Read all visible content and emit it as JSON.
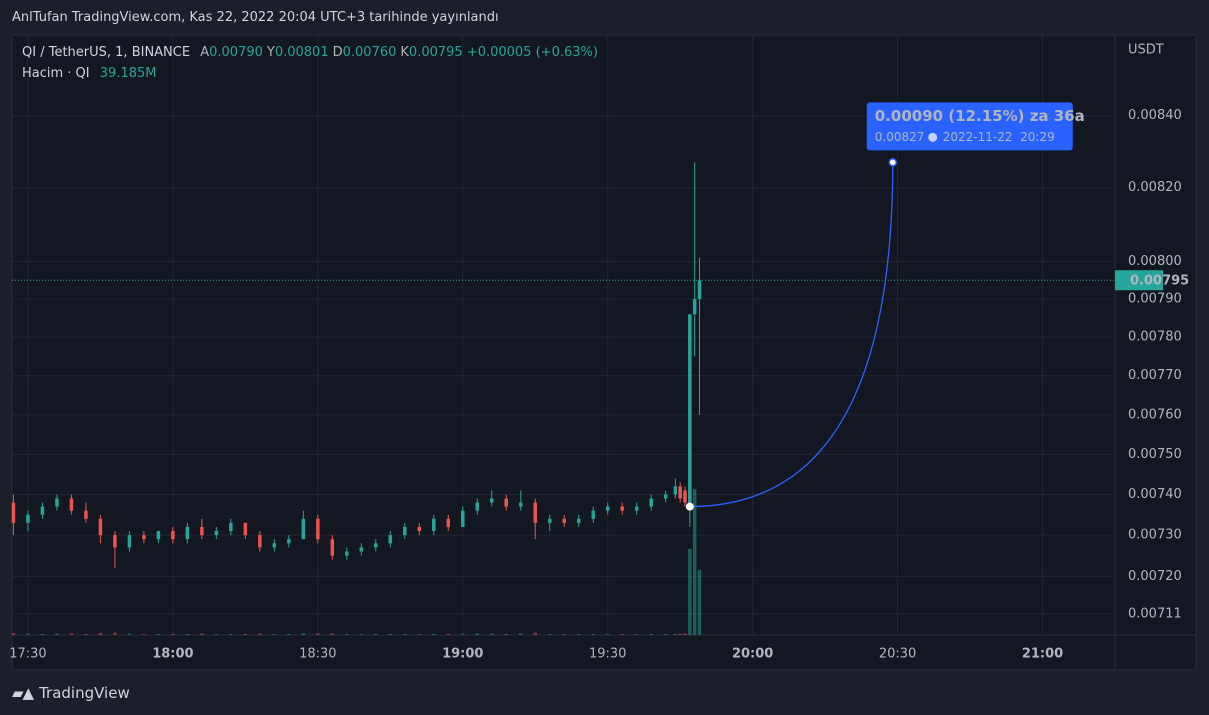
{
  "header": "AnlTufan TradingView.com, Kas 22, 2022 20:04 UTC+3 tarihinde yayınlandı",
  "footer": "TradingView",
  "chart_data": {
    "type": "candlestick",
    "symbol": "QI / TetherUS, 1, BINANCE",
    "ohlc_legend": [
      {
        "key": "A",
        "value": {
          "value": 0.0079,
          "label": "0.00790"
        }
      },
      {
        "key": "Y",
        "value": {
          "value": 0.00801,
          "label": "0.00801"
        }
      },
      {
        "key": "D",
        "value": {
          "value": 0.0076,
          "label": "0.00760"
        }
      },
      {
        "key": "K",
        "value": {
          "value": 0.00795,
          "label": "0.00795"
        }
      }
    ],
    "change": "+0.00005 (+0.63%)",
    "volume_title": "Hacim · QI",
    "volume_value": {
      "value": 39.185,
      "label": "39.185M"
    },
    "y_axis_label": "USDT",
    "log_scale": true,
    "grid": true,
    "up_color": "#26a69a",
    "down_color": "#ef5350",
    "ylim": [
      0.00706,
      0.00863
    ],
    "yticks": [
      {
        "value": 0.0084,
        "label": "0.00840"
      },
      {
        "value": 0.0082,
        "label": "0.00820"
      },
      {
        "value": 0.008,
        "label": "0.00800"
      },
      {
        "value": 0.0079,
        "label": "0.00790"
      },
      {
        "value": 0.0078,
        "label": "0.00780"
      },
      {
        "value": 0.0077,
        "label": "0.00770"
      },
      {
        "value": 0.0076,
        "label": "0.00760"
      },
      {
        "value": 0.0075,
        "label": "0.00750"
      },
      {
        "value": 0.0074,
        "label": "0.00740"
      },
      {
        "value": 0.0073,
        "label": "0.00730"
      },
      {
        "value": 0.0072,
        "label": "0.00720"
      },
      0.00711
    ],
    "xlim": [
      1046.7,
      1275
    ],
    "xticks": [
      {
        "value": 1050,
        "label": "17:30"
      },
      {
        "value": 1080,
        "label": "18:00"
      },
      {
        "value": 1110,
        "label": "18:30"
      },
      {
        "value": 1140,
        "label": "19:00"
      },
      {
        "value": 1170,
        "label": "19:30"
      },
      {
        "value": 1200,
        "label": "20:00"
      },
      {
        "value": 1230,
        "label": "20:30"
      },
      {
        "value": 1260,
        "label": "21:00"
      }
    ],
    "volume_lim": [
      0,
      362
    ],
    "x": [
      1047,
      1050,
      1053,
      1056,
      1059,
      1062,
      1065,
      1068,
      1071,
      1074,
      1077,
      1080,
      1083,
      1086,
      1089,
      1092,
      1095,
      1098,
      1101,
      1104,
      1107,
      1110,
      1113,
      1116,
      1119,
      1122,
      1125,
      1128,
      1131,
      1134,
      1137,
      1140,
      1143,
      1146,
      1149,
      1152,
      1155,
      1158,
      1161,
      1164,
      1167,
      1170,
      1173,
      1176,
      1179,
      1182,
      1184,
      1185,
      1186,
      1187,
      1188,
      1189
    ],
    "open": [
      0.00738,
      0.00733,
      0.00735,
      0.00737,
      0.00739,
      0.00736,
      0.00734,
      0.0073,
      0.00727,
      0.0073,
      0.00729,
      0.00731,
      0.00729,
      0.00732,
      0.0073,
      0.00731,
      0.00733,
      0.0073,
      0.00727,
      0.00728,
      0.00729,
      0.00734,
      0.00729,
      0.00725,
      0.00726,
      0.00727,
      0.00728,
      0.0073,
      0.00732,
      0.00731,
      0.00734,
      0.00732,
      0.00736,
      0.00738,
      0.00739,
      0.00737,
      0.00738,
      0.00733,
      0.00734,
      0.00733,
      0.00734,
      0.00736,
      0.00737,
      0.00736,
      0.00737,
      0.00739,
      0.0074,
      0.00742,
      0.00741,
      0.00737,
      0.00786,
      0.0079
    ],
    "high": [
      0.0074,
      0.00736,
      0.00738,
      0.0074,
      0.0074,
      0.00738,
      0.00735,
      0.00731,
      0.00731,
      0.00731,
      0.00731,
      0.00732,
      0.00733,
      0.00734,
      0.00732,
      0.00734,
      0.00733,
      0.00731,
      0.00729,
      0.0073,
      0.00736,
      0.00735,
      0.0073,
      0.00727,
      0.00728,
      0.00729,
      0.00731,
      0.00733,
      0.00733,
      0.00735,
      0.00735,
      0.00737,
      0.00739,
      0.00741,
      0.0074,
      0.00741,
      0.00739,
      0.00735,
      0.00735,
      0.00735,
      0.00737,
      0.00738,
      0.00738,
      0.00738,
      0.0074,
      0.00741,
      0.00744,
      0.00743,
      0.00742,
      0.00786,
      0.00827,
      0.00801
    ],
    "low": [
      0.0073,
      0.00731,
      0.00734,
      0.00736,
      0.00735,
      0.00733,
      0.00728,
      0.00722,
      0.00726,
      0.00728,
      0.00728,
      0.00728,
      0.00728,
      0.00729,
      0.00729,
      0.0073,
      0.00729,
      0.00726,
      0.00726,
      0.00727,
      0.00729,
      0.00728,
      0.00724,
      0.00724,
      0.00725,
      0.00726,
      0.00727,
      0.00729,
      0.0073,
      0.0073,
      0.00731,
      0.00732,
      0.00735,
      0.00737,
      0.00736,
      0.00736,
      0.00729,
      0.00731,
      0.00732,
      0.00732,
      0.00733,
      0.00735,
      0.00735,
      0.00735,
      0.00736,
      0.00738,
      0.00739,
      0.00738,
      0.00737,
      0.00732,
      0.00775,
      0.0076
    ],
    "close": [
      0.00733,
      0.00735,
      0.00737,
      0.00739,
      0.00736,
      0.00734,
      0.0073,
      0.00727,
      0.0073,
      0.00729,
      0.00731,
      0.00729,
      0.00732,
      0.0073,
      0.00731,
      0.00733,
      0.0073,
      0.00727,
      0.00728,
      0.00729,
      0.00734,
      0.00729,
      0.00725,
      0.00726,
      0.00727,
      0.00728,
      0.0073,
      0.00732,
      0.00731,
      0.00734,
      0.00732,
      0.00736,
      0.00738,
      0.00739,
      0.00737,
      0.00738,
      0.00733,
      0.00734,
      0.00733,
      0.00734,
      0.00736,
      0.00737,
      0.00736,
      0.00737,
      0.00739,
      0.0074,
      0.00742,
      0.00739,
      0.00738,
      0.00786,
      0.0079,
      0.00795
    ],
    "volume": [
      1.2,
      0.8,
      0.6,
      0.9,
      1.0,
      0.7,
      1.3,
      1.5,
      0.8,
      0.5,
      0.6,
      0.7,
      0.6,
      0.9,
      0.5,
      0.6,
      0.7,
      0.8,
      0.5,
      0.6,
      1.1,
      0.9,
      1.0,
      0.6,
      0.5,
      0.6,
      0.7,
      0.6,
      0.5,
      0.7,
      0.6,
      0.8,
      0.9,
      0.8,
      0.7,
      1.0,
      1.4,
      0.6,
      0.5,
      0.5,
      0.6,
      0.5,
      0.6,
      0.5,
      0.7,
      0.6,
      0.7,
      0.8,
      0.9,
      52,
      88,
      39.185
    ],
    "last_price": {
      "value": 0.00795,
      "label": "0.00795"
    },
    "projection": {
      "start_x": 1187,
      "start_y": 0.00737,
      "end_x": 1229,
      "end_y": 0.00827,
      "headline": "0.00090 (12.15%) za 36a",
      "target": {
        "value": 0.00827,
        "label": "0.00827"
      },
      "time": "2022-11-22  20:29"
    }
  }
}
